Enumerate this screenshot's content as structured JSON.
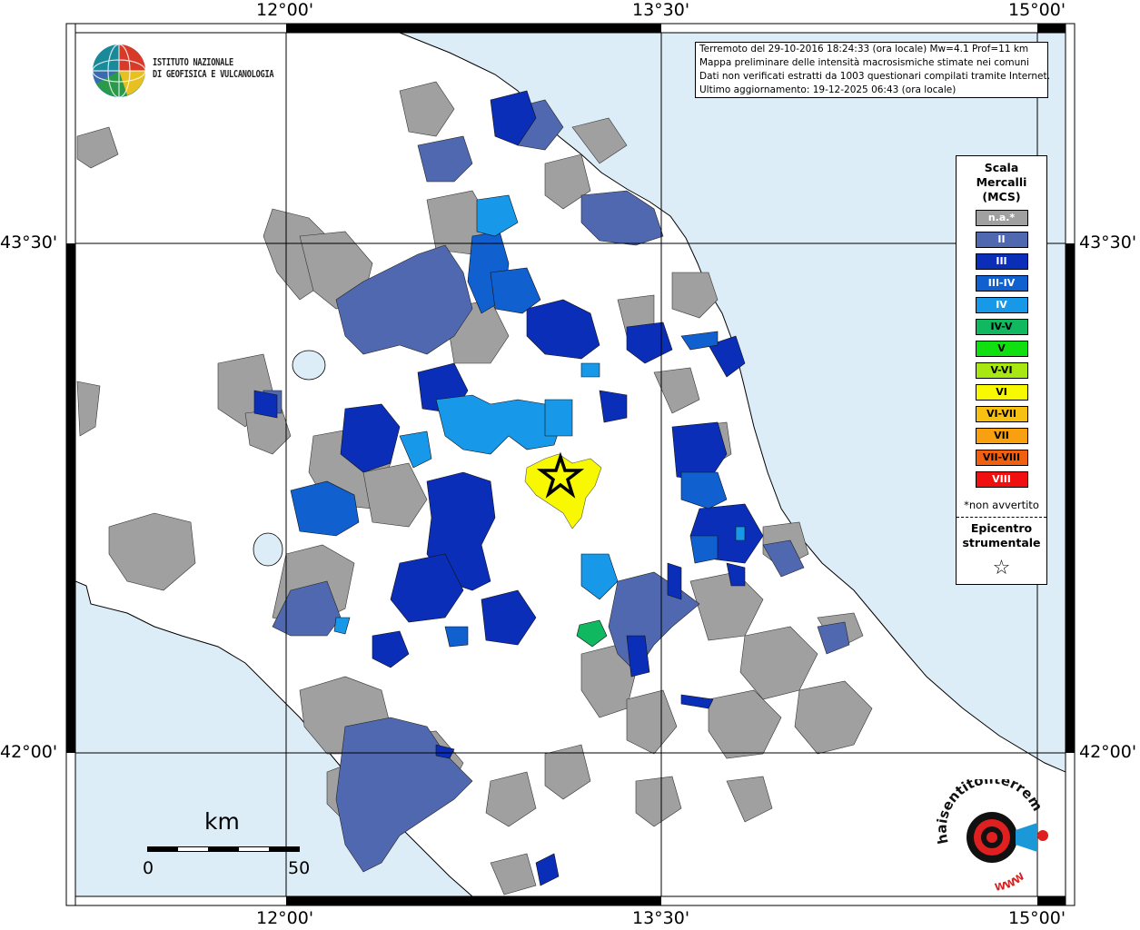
{
  "axes": {
    "top_ticks": [
      "12°00'",
      "13°30'",
      "15°00'"
    ],
    "bottom_ticks": [
      "12°00'",
      "13°30'",
      "15°00'"
    ],
    "left_ticks": [
      "43°30'",
      "42°00'"
    ],
    "right_ticks": [
      "43°30'",
      "42°00'"
    ]
  },
  "info": {
    "line1": "Terremoto del 29-10-2016 18:24:33 (ora locale) Mw=4.1 Prof=11 km",
    "line2": "Mappa preliminare delle intensità macrosismiche stimate nei comuni",
    "line3": "Dati non verificati estratti da 1003 questionari compilati tramite Internet.",
    "line4": "Ultimo aggiornamento: 19-12-2025 06:43 (ora locale)"
  },
  "logo": {
    "line1": "ISTITUTO NAZIONALE",
    "line2": "DI GEOFISICA E VULCANOLOGIA"
  },
  "legend": {
    "title_line1": "Scala",
    "title_line2": "Mercalli",
    "title_line3": "(MCS)",
    "items": [
      {
        "label": "n.a.*",
        "color": "#a0a0a0"
      },
      {
        "label": "II",
        "color": "#5068b0"
      },
      {
        "label": "III",
        "color": "#0a2eb8"
      },
      {
        "label": "III-IV",
        "color": "#1060d0"
      },
      {
        "label": "IV",
        "color": "#1898e8"
      },
      {
        "label": "IV-V",
        "color": "#10b860"
      },
      {
        "label": "V",
        "color": "#10e010"
      },
      {
        "label": "V-VI",
        "color": "#a8e810"
      },
      {
        "label": "VI",
        "color": "#f8f800"
      },
      {
        "label": "VI-VII",
        "color": "#f8c010"
      },
      {
        "label": "VII",
        "color": "#f8a010"
      },
      {
        "label": "VII-VIII",
        "color": "#f06010"
      },
      {
        "label": "VIII",
        "color": "#f01010"
      }
    ],
    "note": "*non avvertito",
    "epicenter_line1": "Epicentro",
    "epicenter_line2": "strumentale",
    "epicenter_symbol": "☆"
  },
  "scale_bar": {
    "unit": "km",
    "start": "0",
    "end": "50"
  },
  "hsit_logo": {
    "text": "haisentitoilterremoto.it",
    "www": "WWW"
  },
  "colors": {
    "sea": "#dcedf8",
    "land": "#ffffff",
    "na": "#a0a0a0",
    "ii": "#5068b0",
    "iii": "#0a2eb8",
    "iii_iv": "#1060d0",
    "iv": "#1898e8",
    "iv_v": "#10b860",
    "vi": "#f8f800"
  }
}
